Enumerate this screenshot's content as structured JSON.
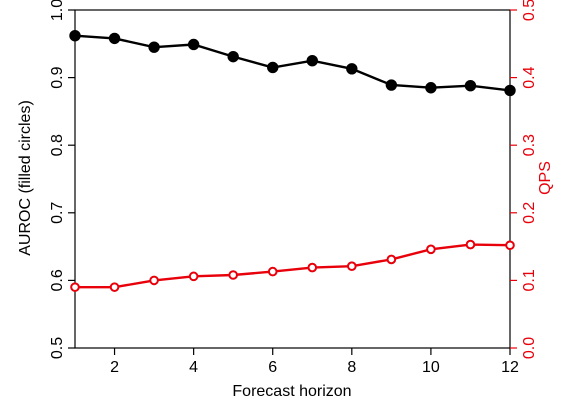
{
  "chart_data": {
    "type": "line",
    "xlabel": "Forecast horizon",
    "ylabel_left": "AUROC (filled circles)",
    "ylabel_right": "QPS",
    "left_axis_color": "#000000",
    "right_axis_color": "#e8000b",
    "xlim": [
      1,
      12
    ],
    "ylim_left": [
      0.5,
      1.0
    ],
    "ylim_right": [
      0.0,
      0.5
    ],
    "x_ticks": [
      "2",
      "4",
      "6",
      "8",
      "10",
      "12"
    ],
    "y_left_ticks": [
      "0.5",
      "0.6",
      "0.7",
      "0.8",
      "0.9",
      "1.0"
    ],
    "y_right_ticks": [
      "0.0",
      "0.1",
      "0.2",
      "0.3",
      "0.4",
      "0.5"
    ],
    "x": [
      1,
      2,
      3,
      4,
      5,
      6,
      7,
      8,
      9,
      10,
      11,
      12
    ],
    "series": [
      {
        "axis": "left",
        "marker": "filled-circle",
        "color": "#000000",
        "values": [
          0.962,
          0.958,
          0.945,
          0.949,
          0.931,
          0.915,
          0.925,
          0.913,
          0.889,
          0.885,
          0.888,
          0.881
        ]
      },
      {
        "axis": "right",
        "marker": "open-circle",
        "color": "#e8000b",
        "values": [
          0.09,
          0.09,
          0.1,
          0.106,
          0.108,
          0.113,
          0.119,
          0.121,
          0.131,
          0.146,
          0.153,
          0.152
        ]
      }
    ]
  }
}
